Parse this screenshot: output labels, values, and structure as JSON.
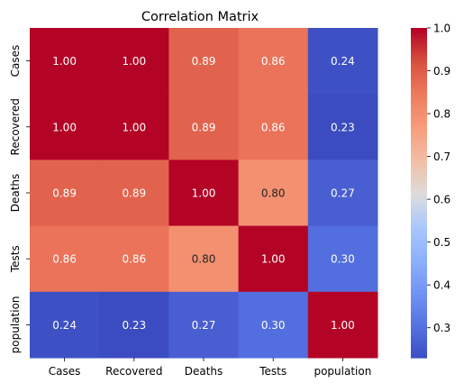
{
  "chart_data": {
    "type": "heatmap",
    "title": "Correlation Matrix",
    "xlabel": "",
    "ylabel": "",
    "x_categories": [
      "Cases",
      "Recovered",
      "Deaths",
      "Tests",
      "population"
    ],
    "y_categories": [
      "Cases",
      "Recovered",
      "Deaths",
      "Tests",
      "population"
    ],
    "values": [
      [
        1.0,
        1.0,
        0.89,
        0.86,
        0.24
      ],
      [
        1.0,
        1.0,
        0.89,
        0.86,
        0.23
      ],
      [
        0.89,
        0.89,
        1.0,
        0.8,
        0.27
      ],
      [
        0.86,
        0.86,
        0.8,
        1.0,
        0.3
      ],
      [
        0.24,
        0.23,
        0.27,
        0.3,
        1.0
      ]
    ],
    "value_format": "0.00",
    "colormap": "coolwarm",
    "vmin": 0.23,
    "vmax": 1.0,
    "colorbar": {
      "ticks": [
        0.3,
        0.4,
        0.5,
        0.6,
        0.7,
        0.8,
        0.9,
        1.0
      ],
      "tick_labels": [
        "0.3",
        "0.4",
        "0.5",
        "0.6",
        "0.7",
        "0.8",
        "0.9",
        "1.0"
      ]
    },
    "grid": false,
    "legend": "none"
  }
}
